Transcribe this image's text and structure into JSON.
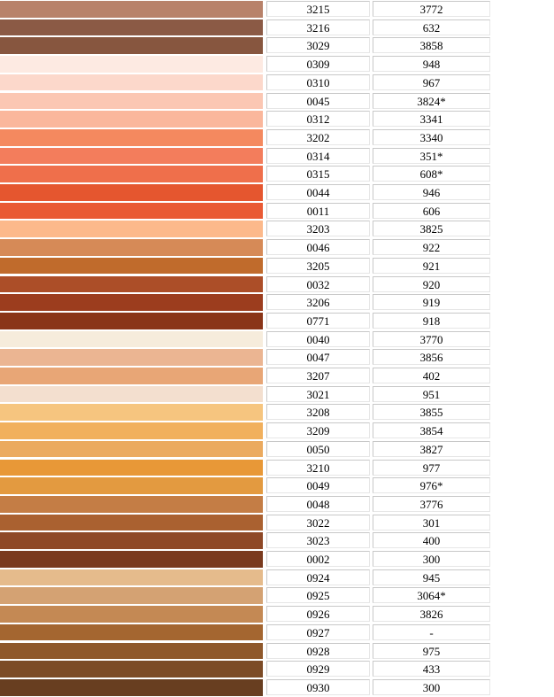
{
  "rows": [
    {
      "color": "#B8826A",
      "code1": "3215",
      "code2": "3772"
    },
    {
      "color": "#8B5A45",
      "code1": "3216",
      "code2": "632"
    },
    {
      "color": "#87563F",
      "code1": "3029",
      "code2": "3858"
    },
    {
      "color": "#FDEAE2",
      "code1": "0309",
      "code2": "948"
    },
    {
      "color": "#FCD8CB",
      "code1": "0310",
      "code2": "967"
    },
    {
      "color": "#FBC7B3",
      "code1": "0045",
      "code2": "3824*"
    },
    {
      "color": "#FAB79C",
      "code1": "0312",
      "code2": "3341"
    },
    {
      "color": "#F4895F",
      "code1": "3202",
      "code2": "3340"
    },
    {
      "color": "#F37D5C",
      "code1": "0314",
      "code2": "351*"
    },
    {
      "color": "#EF6F4B",
      "code1": "0315",
      "code2": "608*"
    },
    {
      "color": "#E5562F",
      "code1": "0044",
      "code2": "946"
    },
    {
      "color": "#E95A34",
      "code1": "0011",
      "code2": "606"
    },
    {
      "color": "#FCB98B",
      "code1": "3203",
      "code2": "3825"
    },
    {
      "color": "#D68A57",
      "code1": "0046",
      "code2": "922"
    },
    {
      "color": "#C06B2C",
      "code1": "3205",
      "code2": "921"
    },
    {
      "color": "#AC4E28",
      "code1": "0032",
      "code2": "920"
    },
    {
      "color": "#9C3D1E",
      "code1": "3206",
      "code2": "919"
    },
    {
      "color": "#8A3518",
      "code1": "0771",
      "code2": "918"
    },
    {
      "color": "#F6ECDC",
      "code1": "0040",
      "code2": "3770"
    },
    {
      "color": "#EBB592",
      "code1": "0047",
      "code2": "3856"
    },
    {
      "color": "#E8A676",
      "code1": "3207",
      "code2": "402"
    },
    {
      "color": "#F3DFCF",
      "code1": "3021",
      "code2": "951"
    },
    {
      "color": "#F6C57F",
      "code1": "3208",
      "code2": "3855"
    },
    {
      "color": "#F1B05D",
      "code1": "3209",
      "code2": "3854"
    },
    {
      "color": "#EBAA5F",
      "code1": "0050",
      "code2": "3827"
    },
    {
      "color": "#E89837",
      "code1": "3210",
      "code2": "977"
    },
    {
      "color": "#E39A40",
      "code1": "0049",
      "code2": "976*"
    },
    {
      "color": "#C47D45",
      "code1": "0048",
      "code2": "3776"
    },
    {
      "color": "#AA6130",
      "code1": "3022",
      "code2": "301"
    },
    {
      "color": "#8E4826",
      "code1": "3023",
      "code2": "400"
    },
    {
      "color": "#7A3A1E",
      "code1": "0002",
      "code2": "300"
    },
    {
      "color": "#E5BB8C",
      "code1": "0924",
      "code2": "945"
    },
    {
      "color": "#D4A273",
      "code1": "0925",
      "code2": "3064*"
    },
    {
      "color": "#C48954",
      "code1": "0926",
      "code2": "3826"
    },
    {
      "color": "#A46630",
      "code1": "0927",
      "code2": "-"
    },
    {
      "color": "#8F582B",
      "code1": "0928",
      "code2": "975"
    },
    {
      "color": "#7C4B26",
      "code1": "0929",
      "code2": "433"
    },
    {
      "color": "#683E20",
      "code1": "0930",
      "code2": "300"
    }
  ]
}
